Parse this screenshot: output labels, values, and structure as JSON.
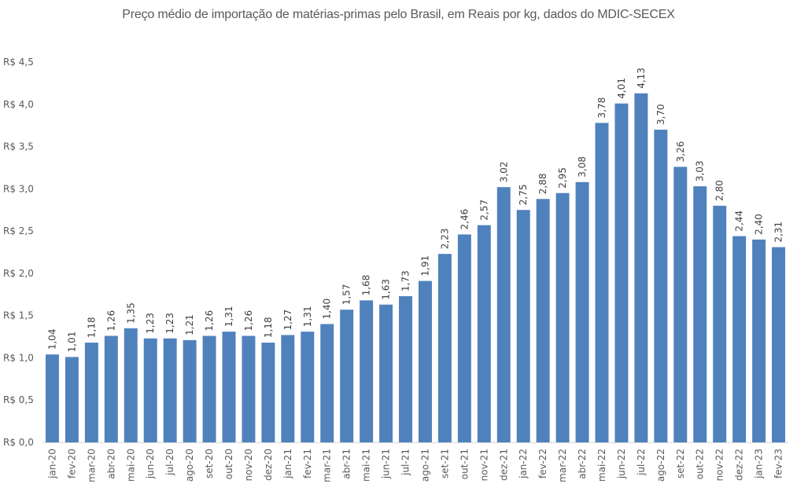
{
  "chart_data": {
    "type": "bar",
    "title": "Preço médio de importação de matérias-primas pelo Brasil, em Reais por kg, dados do MDIC-SECEX",
    "xlabel": "",
    "ylabel": "",
    "ylim": [
      0,
      4.5
    ],
    "yticks": [
      0,
      0.5,
      1.0,
      1.5,
      2.0,
      2.5,
      3.0,
      3.5,
      4.0,
      4.5
    ],
    "ytick_labels": [
      "R$ 0,0",
      "R$ 0,5",
      "R$ 1,0",
      "R$ 1,5",
      "R$ 2,0",
      "R$ 2,5",
      "R$ 3,0",
      "R$ 3,5",
      "R$ 4,0",
      "R$ 4,5"
    ],
    "grid": false,
    "legend": "none",
    "bar_color": "#4F81BD",
    "categories": [
      "jan-20",
      "fev-20",
      "mar-20",
      "abr-20",
      "mai-20",
      "jun-20",
      "jul-20",
      "ago-20",
      "set-20",
      "out-20",
      "nov-20",
      "dez-20",
      "jan-21",
      "fev-21",
      "mar-21",
      "abr-21",
      "mai-21",
      "jun-21",
      "jul-21",
      "ago-21",
      "set-21",
      "out-21",
      "nov-21",
      "dez-21",
      "jan-22",
      "fev-22",
      "mar-22",
      "abr-22",
      "mai-22",
      "jun-22",
      "jul-22",
      "ago-22",
      "set-22",
      "out-22",
      "nov-22",
      "dez-22",
      "jan-23",
      "fev-23"
    ],
    "values": [
      1.04,
      1.01,
      1.18,
      1.26,
      1.35,
      1.23,
      1.23,
      1.21,
      1.26,
      1.31,
      1.26,
      1.18,
      1.27,
      1.31,
      1.4,
      1.57,
      1.68,
      1.63,
      1.73,
      1.91,
      2.23,
      2.46,
      2.57,
      3.02,
      2.75,
      2.88,
      2.95,
      3.08,
      3.78,
      4.01,
      4.13,
      3.7,
      3.26,
      3.03,
      2.8,
      2.44,
      2.4,
      2.31
    ],
    "data_labels": [
      "1,04",
      "1,01",
      "1,18",
      "1,26",
      "1,35",
      "1,23",
      "1,23",
      "1,21",
      "1,26",
      "1,31",
      "1,26",
      "1,18",
      "1,27",
      "1,31",
      "1,40",
      "1,57",
      "1,68",
      "1,63",
      "1,73",
      "1,91",
      "2,23",
      "2,46",
      "2,57",
      "3,02",
      "2,75",
      "2,88",
      "2,95",
      "3,08",
      "3,78",
      "4,01",
      "4,13",
      "3,70",
      "3,26",
      "3,03",
      "2,80",
      "2,44",
      "2,40",
      "2,31"
    ]
  }
}
